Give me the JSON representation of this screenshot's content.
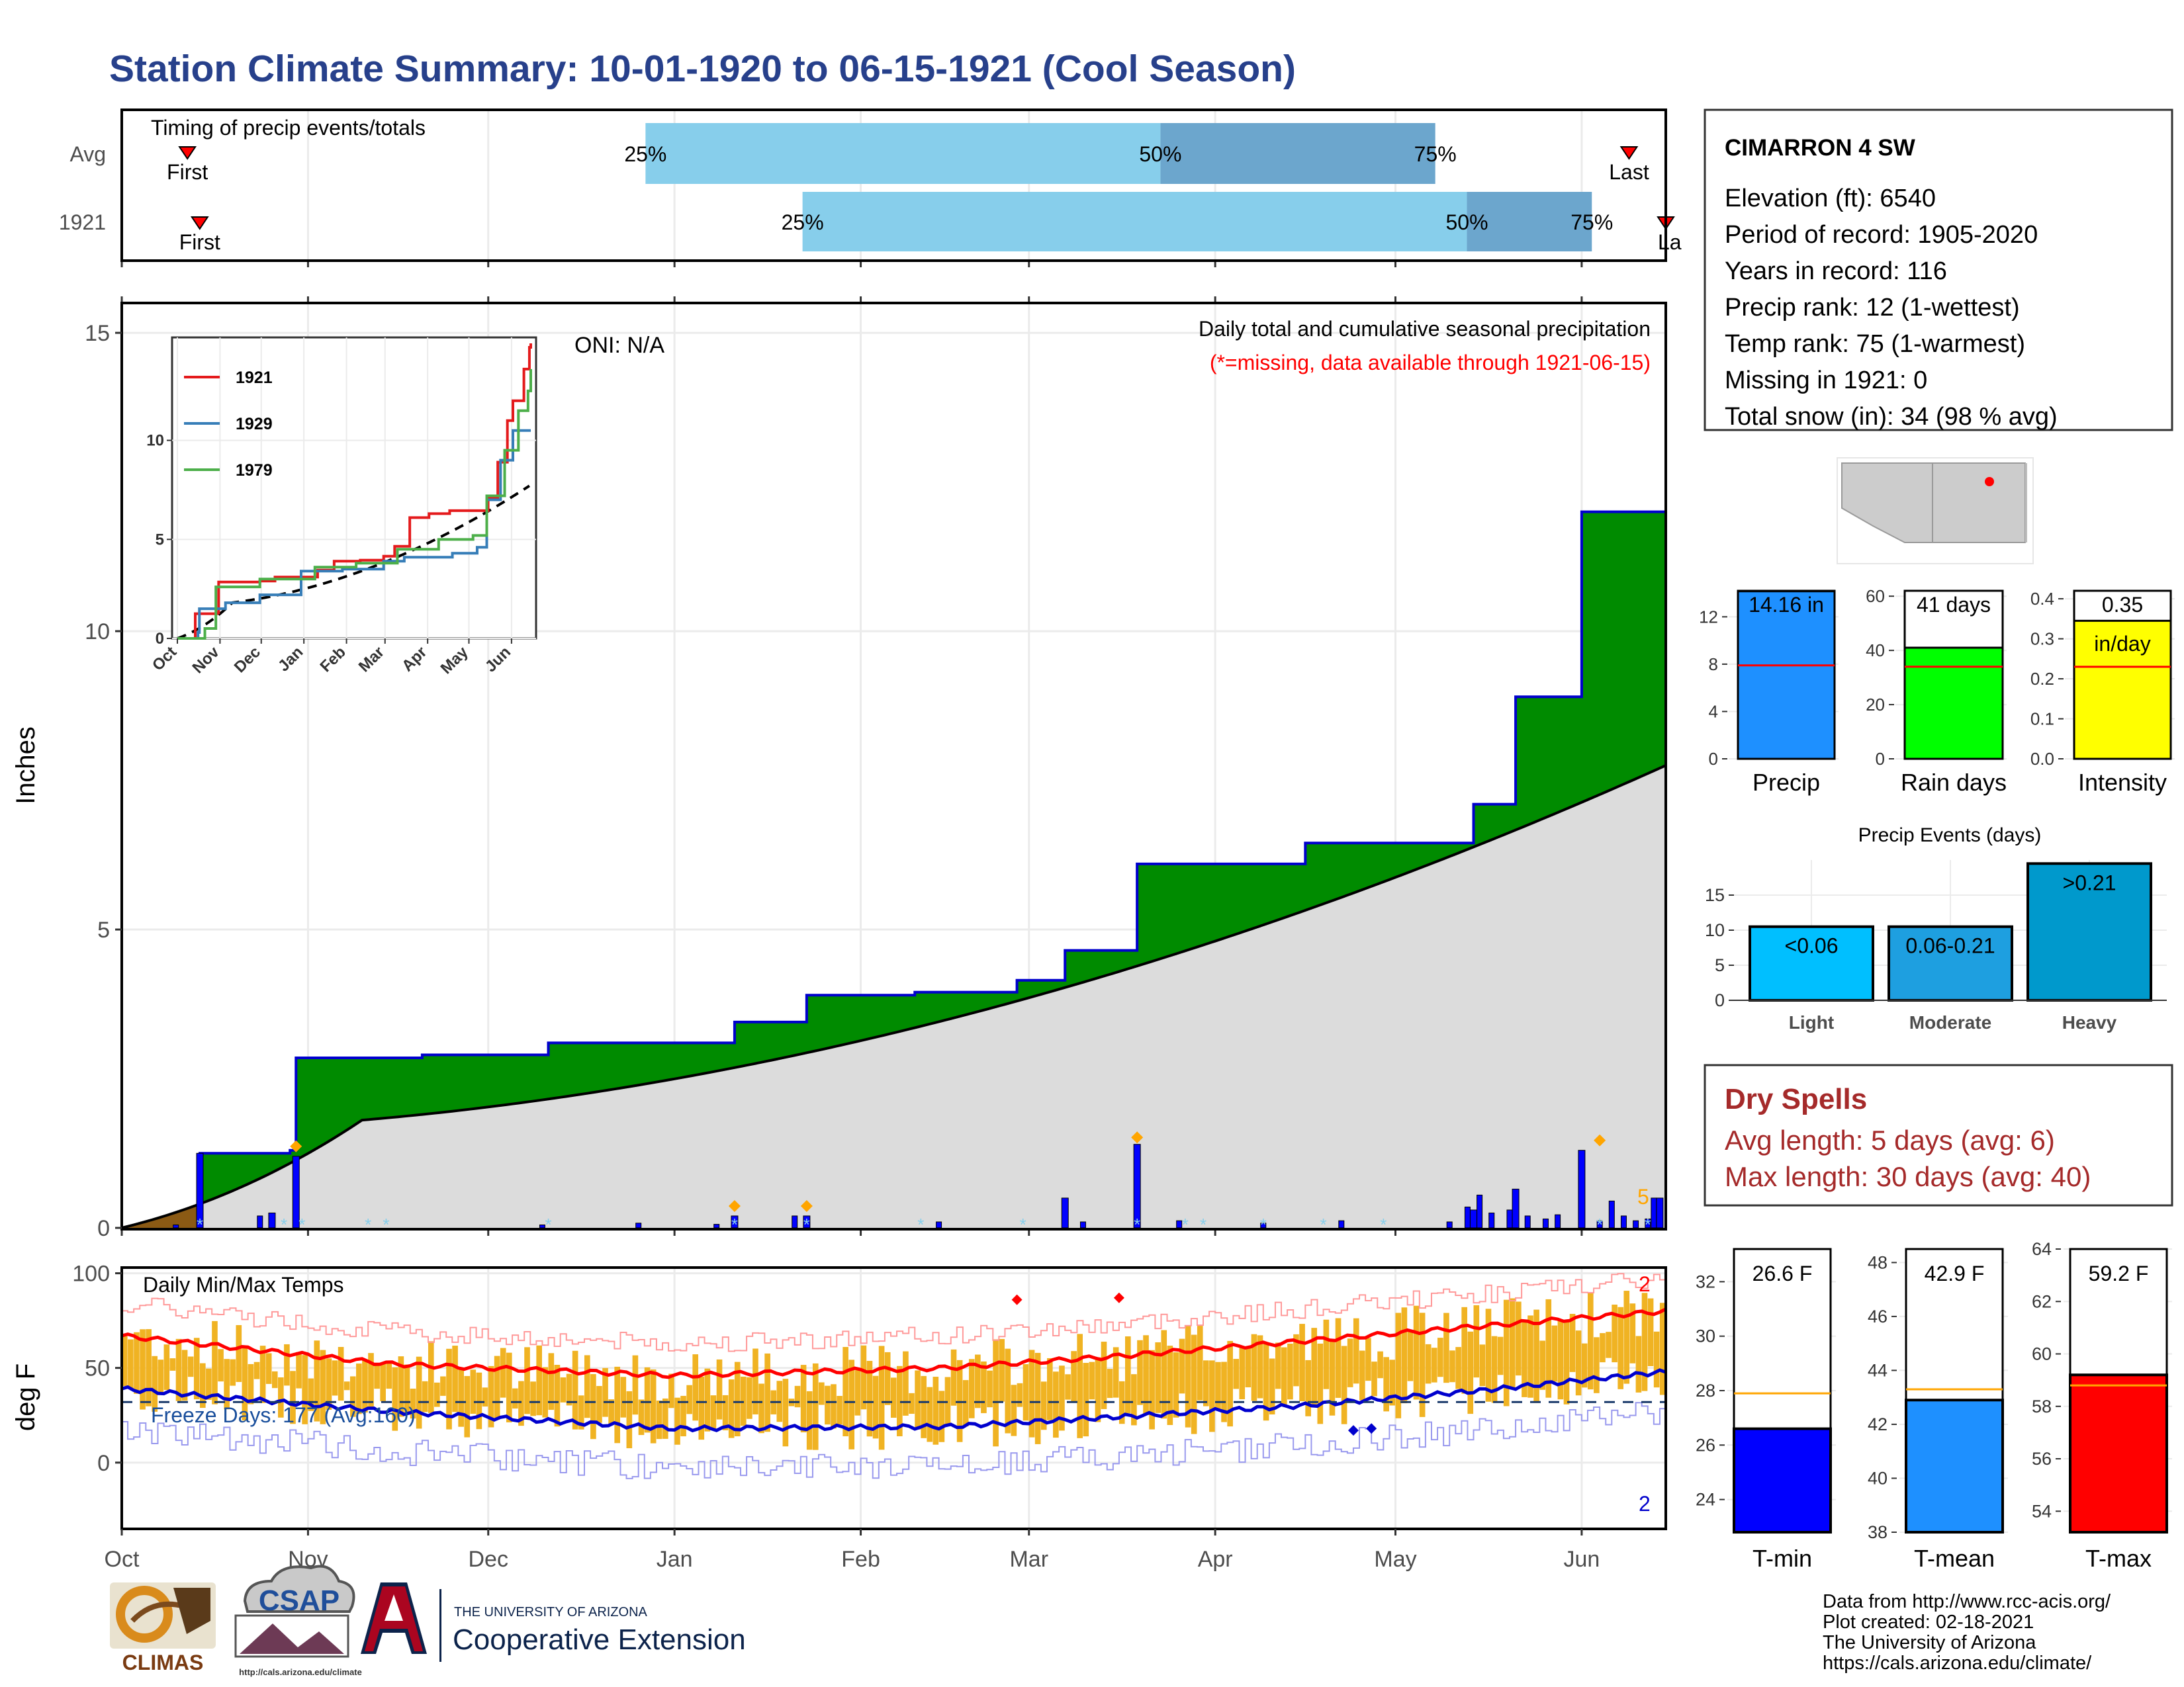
{
  "page_title": "Station Climate Summary: 10-01-1920 to 06-15-1921 (Cool Season)",
  "timing": {
    "label": "Timing of precip events/totals",
    "rows": [
      "Avg",
      "1921"
    ],
    "first_label": "First",
    "last_label": "Last",
    "last_label_1921": "La",
    "avg": {
      "p25": 0.3392,
      "p50": 0.6727,
      "p75": 0.8507,
      "first": 0.0425,
      "last": 0.9762
    },
    "y1921": {
      "p25": 0.4409,
      "p50": 0.8712,
      "p75": 0.9521,
      "first": 0.0505,
      "last": 1.0
    },
    "percent_labels": [
      "25%",
      "50%",
      "75%"
    ]
  },
  "precip_panel": {
    "title": "Daily total and cumulative seasonal precipitation",
    "note": "(*=missing, data available through 1921-06-15)",
    "oni": "ONI: N/A",
    "ylabel": "Inches",
    "yticks": [
      "0",
      "5",
      "10",
      "15"
    ],
    "snow_count_label": "5"
  },
  "temp_panel": {
    "title": "Daily Min/Max Temps",
    "freeze": "Freeze Days: 177 (Avg:160)",
    "ylabel": "deg F",
    "yticks": [
      "0",
      "50",
      "100"
    ],
    "record_high_count": "2",
    "record_low_count": "2"
  },
  "x_axis": {
    "months": [
      "Oct",
      "Nov",
      "Dec",
      "Jan",
      "Feb",
      "Mar",
      "Apr",
      "May",
      "Jun"
    ]
  },
  "inset": {
    "legend": [
      {
        "name": "1921",
        "color": "#e41a1c"
      },
      {
        "name": "1929",
        "color": "#377eb8"
      },
      {
        "name": "1979",
        "color": "#4daf4a"
      }
    ],
    "xticks": [
      "Oct",
      "Nov",
      "Dec",
      "Jan",
      "Feb",
      "Mar",
      "Apr",
      "May",
      "Jun"
    ],
    "yticks": [
      "0",
      "5",
      "10"
    ]
  },
  "station": {
    "name": "CIMARRON 4 SW",
    "lines": [
      "Elevation (ft): 6540",
      "Period of record: 1905-2020",
      "Years in record: 116",
      "Precip rank: 12 (1-wettest)",
      "Temp rank: 75 (1-warmest)",
      "Missing in 1921: 0",
      "Total snow (in): 34 (98 % avg)"
    ]
  },
  "summary_bars": [
    {
      "label": "Precip",
      "value_label": "14.16 in",
      "value": 14.16,
      "avg": 7.9,
      "ymax": 14.2,
      "color": "#1e90ff",
      "ticks": [
        "0",
        "4",
        "8",
        "12"
      ]
    },
    {
      "label": "Rain days",
      "value_label": "41 days",
      "value": 41,
      "avg": 34,
      "ymax": 62,
      "color": "#00ff00",
      "ticks": [
        "0",
        "20",
        "40",
        "60"
      ]
    },
    {
      "label": "Intensity",
      "value_label": "0.35",
      "unit": "in/day",
      "value": 0.345,
      "avg": 0.23,
      "ymax": 0.42,
      "color": "#ffff00",
      "ticks": [
        "0.0",
        "0.1",
        "0.2",
        "0.3",
        "0.4"
      ]
    }
  ],
  "precip_events": {
    "title": "Precip Events (days)",
    "ticks": [
      "0",
      "5",
      "10",
      "15"
    ],
    "bars": [
      {
        "category": "Light",
        "label": "<0.06",
        "value": 10.5,
        "color": "#00bfff"
      },
      {
        "category": "Moderate",
        "label": "0.06-0.21",
        "value": 10.5,
        "color": "#1e9fe0"
      },
      {
        "category": "Heavy",
        "label": ">0.21",
        "value": 19.5,
        "color": "#0099cc"
      }
    ]
  },
  "dry_spells": {
    "title": "Dry Spells",
    "avg_length": "Avg length: 5 days (avg: 6)",
    "max_length": "Max length: 30 days (avg: 40)"
  },
  "temp_bars": [
    {
      "label": "T-min",
      "value_label": "26.6 F",
      "value": 26.6,
      "avg": 27.9,
      "ymin": 22.8,
      "ymax": 33.2,
      "color": "#0000ff",
      "ticks": [
        "24",
        "26",
        "28",
        "30",
        "32"
      ]
    },
    {
      "label": "T-mean",
      "value_label": "42.9 F",
      "value": 42.9,
      "avg": 43.3,
      "ymin": 38,
      "ymax": 48.5,
      "color": "#1e90ff",
      "ticks": [
        "38",
        "40",
        "42",
        "44",
        "46",
        "48"
      ]
    },
    {
      "label": "T-max",
      "value_label": "59.2 F",
      "value": 59.2,
      "avg": 58.8,
      "ymin": 53.2,
      "ymax": 64,
      "color": "#ff0000",
      "ticks": [
        "54",
        "56",
        "58",
        "60",
        "62",
        "64"
      ]
    }
  ],
  "footer": {
    "credit_lines": [
      "Data from http://www.rcc-acis.org/",
      "Plot created: 02-18-2021",
      "The University of Arizona",
      "https://cals.arizona.edu/climate/"
    ],
    "logo_climas": "CLIMAS",
    "logo_csap": "CSAP",
    "logo_csap_url": "http://cals.arizona.edu/climate",
    "coop_small": "THE UNIVERSITY OF ARIZONA",
    "coop_big": "Cooperative Extension"
  },
  "chart_data": [
    {
      "type": "area",
      "title": "Daily total and cumulative seasonal precipitation",
      "ylabel": "Inches",
      "ylim": [
        0,
        15.5
      ],
      "x_start": "1920-10-01",
      "x_end": "1921-06-15",
      "cumulative_1921": [
        {
          "date": "1920-10-14",
          "value": 1.25
        },
        {
          "date": "1920-10-28",
          "value": 1.25
        },
        {
          "date": "1920-10-29",
          "value": 1.3
        },
        {
          "date": "1920-10-30",
          "value": 2.85
        },
        {
          "date": "1920-11-20",
          "value": 2.9
        },
        {
          "date": "1920-12-11",
          "value": 3.1
        },
        {
          "date": "1921-01-11",
          "value": 3.45
        },
        {
          "date": "1921-01-23",
          "value": 3.9
        },
        {
          "date": "1921-02-10",
          "value": 3.95
        },
        {
          "date": "1921-02-27",
          "value": 4.15
        },
        {
          "date": "1921-03-07",
          "value": 4.65
        },
        {
          "date": "1921-03-19",
          "value": 6.1
        },
        {
          "date": "1921-04-16",
          "value": 6.45
        },
        {
          "date": "1921-05-14",
          "value": 7.1
        },
        {
          "date": "1921-05-21",
          "value": 8.9
        },
        {
          "date": "1921-06-01",
          "value": 12.0
        },
        {
          "date": "1921-06-15",
          "value": 14.16
        }
      ],
      "cumulative_avg_end": 7.75,
      "daily_spikes": [
        {
          "date": "1920-10-14",
          "value": 1.25
        },
        {
          "date": "1920-10-26",
          "value": 0.25
        },
        {
          "date": "1920-10-30",
          "value": 1.2
        },
        {
          "date": "1921-01-11",
          "value": 0.2
        },
        {
          "date": "1921-01-23",
          "value": 0.2
        },
        {
          "date": "1921-03-07",
          "value": 0.5
        },
        {
          "date": "1921-03-19",
          "value": 1.4
        },
        {
          "date": "1921-05-14",
          "value": 0.3
        },
        {
          "date": "1921-05-21",
          "value": 0.65
        },
        {
          "date": "1921-06-01",
          "value": 1.3
        },
        {
          "date": "1921-06-14",
          "value": 0.5
        }
      ]
    },
    {
      "type": "bar",
      "title": "Daily Min/Max Temps",
      "ylabel": "deg F",
      "ylim": [
        -35,
        103
      ],
      "freeze_line": 32,
      "avg_max": [
        {
          "date": "1920-10-01",
          "value": 67
        },
        {
          "date": "1920-11-15",
          "value": 52
        },
        {
          "date": "1921-01-01",
          "value": 46
        },
        {
          "date": "1921-02-15",
          "value": 50
        },
        {
          "date": "1921-03-15",
          "value": 56
        },
        {
          "date": "1921-04-15",
          "value": 64
        },
        {
          "date": "1921-05-15",
          "value": 72
        },
        {
          "date": "1921-06-15",
          "value": 80
        }
      ],
      "avg_min": [
        {
          "date": "1920-10-01",
          "value": 39
        },
        {
          "date": "1920-11-15",
          "value": 27
        },
        {
          "date": "1921-01-01",
          "value": 18
        },
        {
          "date": "1921-02-15",
          "value": 19
        },
        {
          "date": "1921-03-15",
          "value": 24
        },
        {
          "date": "1921-04-15",
          "value": 30
        },
        {
          "date": "1921-05-15",
          "value": 38
        },
        {
          "date": "1921-06-15",
          "value": 48
        }
      ]
    }
  ]
}
